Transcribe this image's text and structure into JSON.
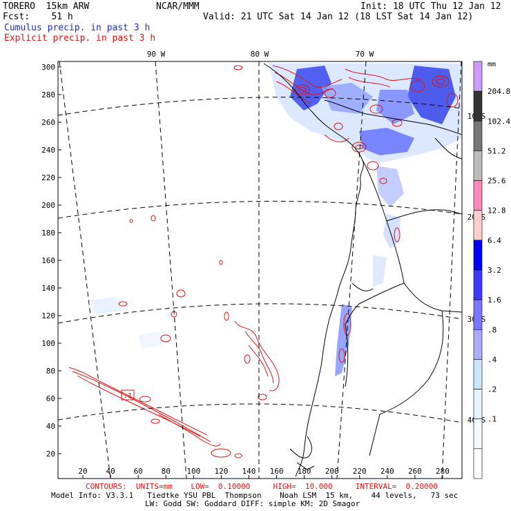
{
  "header": {
    "model": "TORERO  15km ARW",
    "fcst": "Fcst:    51 h",
    "org": "NCAR/MMM",
    "init": "Init: 18 UTC Thu 12 Jan 12",
    "valid": "Valid: 21 UTC Sat 14 Jan 12 (18 LST Sat 14 Jan 12)",
    "field1": "Cumulus precip. in past 3 h",
    "field2": "Explicit precip. in past 3 h",
    "colors": {
      "field1": "#1a2bd0",
      "field2": "#e01010"
    }
  },
  "map": {
    "longitude_labels": [
      "90 W",
      "80 W",
      "70 W"
    ],
    "latitude_labels": [
      "10 S",
      "20 S",
      "30 S",
      "40 S"
    ],
    "y_ticks": [
      "300",
      "280",
      "260",
      "240",
      "220",
      "200",
      "180",
      "160",
      "140",
      "120",
      "100",
      "80",
      "60",
      "40",
      "20"
    ],
    "x_ticks": [
      "20",
      "40",
      "60",
      "80",
      "100",
      "120",
      "140",
      "160",
      "180",
      "200",
      "220",
      "240",
      "260",
      "280"
    ],
    "low_marker": ".1"
  },
  "colorbar": {
    "unit": "mm",
    "labels": [
      "204.8",
      "102.4",
      "51.2",
      "25.6",
      "12.8",
      "6.4",
      "3.2",
      "1.6",
      ".8",
      ".4",
      ".2",
      ".1"
    ],
    "colors": [
      "#cc99ff",
      "#333333",
      "#777777",
      "#bbbbbb",
      "#ff88bb",
      "#ffcccc",
      "#0000ff",
      "#3b3bff",
      "#7777ff",
      "#aaaaff",
      "#cce5ff",
      "#e6f2ff",
      "#f2fbff",
      "#ffffff"
    ]
  },
  "footer": {
    "contours": "CONTOURS:  UNITS=mm    LOW=  0.10000     HIGH=  10.000     INTERVAL=  0.20000",
    "line1": "Model Info: V3.3.1   Tiedtke YSU PBL  Thompson    Noah LSM  15 km,    44 levels,   73 sec",
    "line2": "LW: Godd SW: Goddard DIFF: simple KM: 2D Smagor"
  }
}
